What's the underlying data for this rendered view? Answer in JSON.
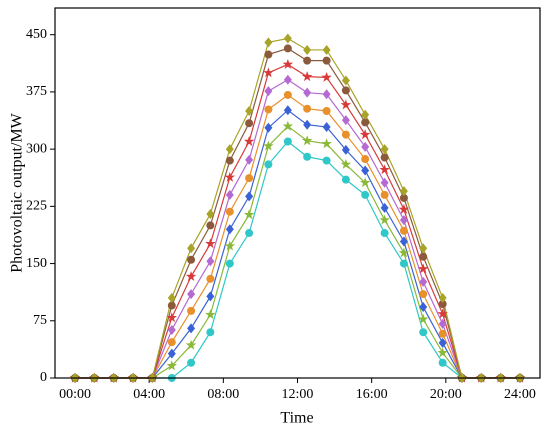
{
  "chart_data": {
    "type": "line",
    "xlabel": "Time",
    "ylabel": "Photovoltaic output/MW",
    "x": [
      0,
      1.04,
      2.09,
      3.13,
      4.17,
      5.22,
      6.26,
      7.3,
      8.35,
      9.39,
      10.43,
      11.48,
      12.52,
      13.57,
      14.61,
      15.65,
      16.7,
      17.74,
      18.78,
      19.83,
      20.87,
      21.91,
      22.96,
      24
    ],
    "xlim": [
      -1.08,
      25.08
    ],
    "xticks": [
      {
        "value": 0,
        "label": "00:00"
      },
      {
        "value": 4,
        "label": "04:00"
      },
      {
        "value": 8,
        "label": "08:00"
      },
      {
        "value": 12,
        "label": "12:00"
      },
      {
        "value": 16,
        "label": "16:00"
      },
      {
        "value": 20,
        "label": "20:00"
      },
      {
        "value": 24,
        "label": "24:00"
      }
    ],
    "ylim": [
      0,
      485
    ],
    "yticks": [
      0,
      75,
      150,
      225,
      300,
      375,
      450
    ],
    "series": [
      {
        "color": "#2fc7c7",
        "marker": "circle",
        "values": [
          0,
          0,
          0,
          0,
          0,
          0,
          20,
          60,
          150,
          190,
          280,
          310,
          290,
          285,
          260,
          240,
          190,
          150,
          60,
          20,
          0,
          0,
          0,
          0
        ]
      },
      {
        "color": "#8ab838",
        "marker": "star",
        "values": [
          0,
          0,
          0,
          0,
          0,
          16,
          43,
          83,
          173,
          214,
          304,
          330,
          311,
          307,
          280,
          256,
          207,
          164,
          77,
          33,
          0,
          0,
          0,
          0
        ]
      },
      {
        "color": "#3a62d6",
        "marker": "diamond",
        "values": [
          0,
          0,
          0,
          0,
          0,
          32,
          65,
          107,
          195,
          238,
          328,
          351,
          332,
          329,
          299,
          272,
          223,
          179,
          93,
          46,
          0,
          0,
          0,
          0
        ]
      },
      {
        "color": "#e8902c",
        "marker": "circle",
        "values": [
          0,
          0,
          0,
          0,
          0,
          47,
          88,
          130,
          218,
          262,
          352,
          371,
          353,
          350,
          319,
          287,
          240,
          193,
          110,
          58,
          0,
          0,
          0,
          0
        ]
      },
      {
        "color": "#b46ad2",
        "marker": "diamond",
        "values": [
          0,
          0,
          0,
          0,
          0,
          63,
          110,
          153,
          240,
          286,
          376,
          391,
          374,
          372,
          338,
          303,
          256,
          207,
          126,
          71,
          0,
          0,
          0,
          0
        ]
      },
      {
        "color": "#d83a3a",
        "marker": "star",
        "values": [
          0,
          0,
          0,
          0,
          0,
          79,
          133,
          176,
          263,
          310,
          400,
          411,
          395,
          394,
          358,
          319,
          273,
          221,
          143,
          84,
          0,
          0,
          0,
          0
        ]
      },
      {
        "color": "#8b5a3c",
        "marker": "circle",
        "values": [
          0,
          0,
          0,
          0,
          0,
          95,
          155,
          200,
          285,
          334,
          424,
          432,
          416,
          416,
          377,
          335,
          289,
          236,
          159,
          97,
          0,
          0,
          0,
          0
        ]
      },
      {
        "color": "#a8a428",
        "marker": "diamond",
        "values": [
          0,
          0,
          0,
          0,
          0,
          105,
          170,
          215,
          300,
          350,
          440,
          445,
          430,
          430,
          390,
          345,
          300,
          245,
          170,
          105,
          0,
          0,
          0,
          0
        ]
      }
    ]
  }
}
